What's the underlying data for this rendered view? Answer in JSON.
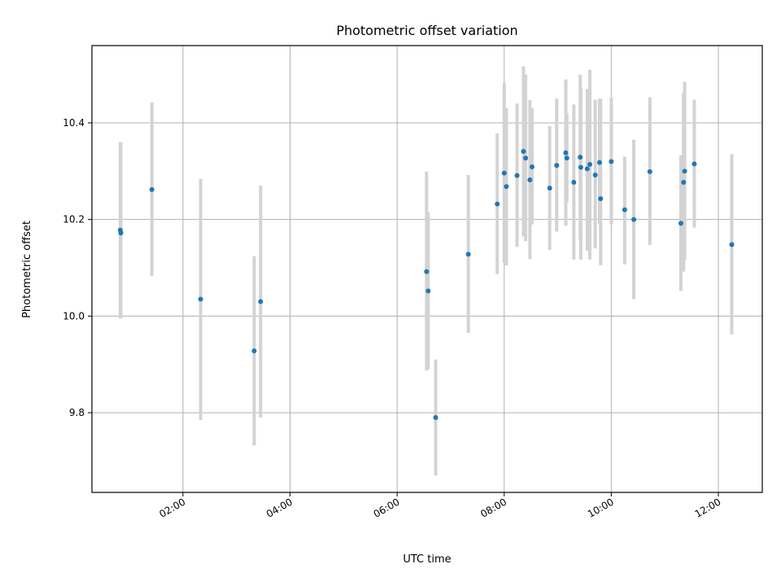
{
  "chart_data": {
    "type": "scatter",
    "title": "Photometric offset variation",
    "xlabel": "UTC time",
    "ylabel": "Photometric offset",
    "x_unit": "hours UTC",
    "xlim": [
      0.3,
      12.82
    ],
    "ylim": [
      9.635,
      10.56
    ],
    "grid": true,
    "x_ticks": [
      {
        "value": 2,
        "label": "02:00"
      },
      {
        "value": 4,
        "label": "04:00"
      },
      {
        "value": 6,
        "label": "06:00"
      },
      {
        "value": 8,
        "label": "08:00"
      },
      {
        "value": 10,
        "label": "10:00"
      },
      {
        "value": 12,
        "label": "12:00"
      }
    ],
    "y_ticks": [
      {
        "value": 9.8,
        "label": "9.8"
      },
      {
        "value": 10.0,
        "label": "10.0"
      },
      {
        "value": 10.2,
        "label": "10.2"
      },
      {
        "value": 10.4,
        "label": "10.4"
      }
    ],
    "marker_color": "#1f77b4",
    "errorbar_color": "#d3d3d3",
    "points": [
      {
        "x": 0.83,
        "y": 10.178,
        "ylow": 9.995,
        "yhigh": 10.36
      },
      {
        "x": 0.84,
        "y": 10.172,
        "ylow": 9.995,
        "yhigh": 10.36
      },
      {
        "x": 1.42,
        "y": 10.262,
        "ylow": 10.083,
        "yhigh": 10.442
      },
      {
        "x": 2.33,
        "y": 10.035,
        "ylow": 9.785,
        "yhigh": 10.284
      },
      {
        "x": 3.33,
        "y": 9.928,
        "ylow": 9.732,
        "yhigh": 10.124
      },
      {
        "x": 3.45,
        "y": 10.03,
        "ylow": 9.79,
        "yhigh": 10.27
      },
      {
        "x": 6.55,
        "y": 10.092,
        "ylow": 9.887,
        "yhigh": 10.299
      },
      {
        "x": 6.58,
        "y": 10.052,
        "ylow": 9.89,
        "yhigh": 10.215
      },
      {
        "x": 6.72,
        "y": 9.79,
        "ylow": 9.67,
        "yhigh": 9.91
      },
      {
        "x": 7.33,
        "y": 10.128,
        "ylow": 9.965,
        "yhigh": 10.292
      },
      {
        "x": 7.87,
        "y": 10.232,
        "ylow": 10.087,
        "yhigh": 10.378
      },
      {
        "x": 8.0,
        "y": 10.296,
        "ylow": 10.11,
        "yhigh": 10.482
      },
      {
        "x": 8.04,
        "y": 10.268,
        "ylow": 10.105,
        "yhigh": 10.43
      },
      {
        "x": 8.24,
        "y": 10.291,
        "ylow": 10.143,
        "yhigh": 10.44
      },
      {
        "x": 8.36,
        "y": 10.341,
        "ylow": 10.165,
        "yhigh": 10.517
      },
      {
        "x": 8.4,
        "y": 10.327,
        "ylow": 10.155,
        "yhigh": 10.5
      },
      {
        "x": 8.48,
        "y": 10.282,
        "ylow": 10.118,
        "yhigh": 10.447
      },
      {
        "x": 8.52,
        "y": 10.309,
        "ylow": 10.19,
        "yhigh": 10.43
      },
      {
        "x": 8.85,
        "y": 10.265,
        "ylow": 10.137,
        "yhigh": 10.393
      },
      {
        "x": 8.98,
        "y": 10.312,
        "ylow": 10.175,
        "yhigh": 10.45
      },
      {
        "x": 9.15,
        "y": 10.338,
        "ylow": 10.187,
        "yhigh": 10.49
      },
      {
        "x": 9.17,
        "y": 10.327,
        "ylow": 10.235,
        "yhigh": 10.42
      },
      {
        "x": 9.3,
        "y": 10.277,
        "ylow": 10.117,
        "yhigh": 10.438
      },
      {
        "x": 9.42,
        "y": 10.329,
        "ylow": 10.158,
        "yhigh": 10.5
      },
      {
        "x": 9.43,
        "y": 10.308,
        "ylow": 10.117,
        "yhigh": 10.472
      },
      {
        "x": 9.55,
        "y": 10.305,
        "ylow": 10.135,
        "yhigh": 10.47
      },
      {
        "x": 9.6,
        "y": 10.314,
        "ylow": 10.117,
        "yhigh": 10.51
      },
      {
        "x": 9.7,
        "y": 10.292,
        "ylow": 10.14,
        "yhigh": 10.448
      },
      {
        "x": 9.78,
        "y": 10.318,
        "ylow": 10.19,
        "yhigh": 10.45
      },
      {
        "x": 9.8,
        "y": 10.243,
        "ylow": 10.105,
        "yhigh": 10.45
      },
      {
        "x": 10.0,
        "y": 10.32,
        "ylow": 10.19,
        "yhigh": 10.452
      },
      {
        "x": 10.25,
        "y": 10.22,
        "ylow": 10.107,
        "yhigh": 10.33
      },
      {
        "x": 10.42,
        "y": 10.2,
        "ylow": 10.035,
        "yhigh": 10.365
      },
      {
        "x": 10.72,
        "y": 10.299,
        "ylow": 10.147,
        "yhigh": 10.453
      },
      {
        "x": 11.3,
        "y": 10.192,
        "ylow": 10.052,
        "yhigh": 10.333
      },
      {
        "x": 11.35,
        "y": 10.277,
        "ylow": 10.092,
        "yhigh": 10.462
      },
      {
        "x": 11.37,
        "y": 10.3,
        "ylow": 10.115,
        "yhigh": 10.485
      },
      {
        "x": 11.55,
        "y": 10.315,
        "ylow": 10.183,
        "yhigh": 10.448
      },
      {
        "x": 12.25,
        "y": 10.148,
        "ylow": 9.962,
        "yhigh": 10.335
      }
    ]
  }
}
